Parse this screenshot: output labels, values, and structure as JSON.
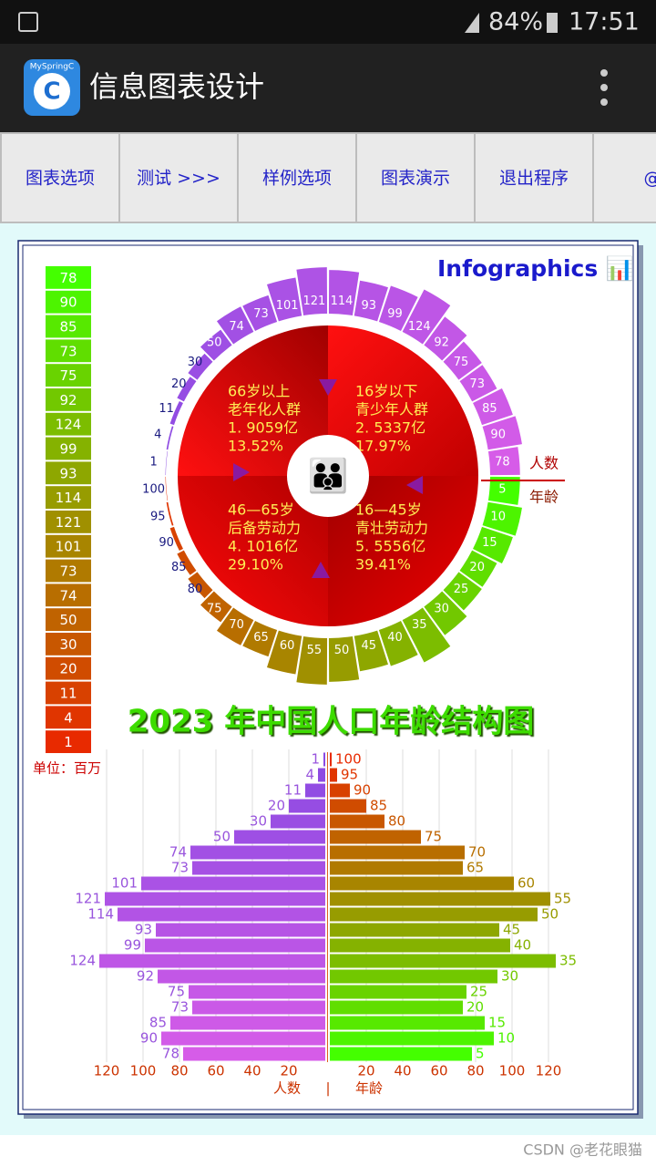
{
  "status_bar": {
    "battery": "84%",
    "time": "17:51"
  },
  "app_bar": {
    "icon_label": "MySpringC",
    "title": "信息图表设计"
  },
  "menu": [
    "图表选项",
    "测试  >>>",
    "样例选项",
    "图表演示",
    "退出程序",
    "@"
  ],
  "footer": "CSDN @老花眼猫",
  "chart_data": {
    "type": "pyramid",
    "title": "2023 年中国人口年龄结构图",
    "header": "Infographics 📊",
    "unit": "单位：百万",
    "axis_labels": [
      "人数",
      "年龄"
    ],
    "separator": "|",
    "categories": [
      5,
      10,
      15,
      20,
      25,
      30,
      35,
      40,
      45,
      50,
      55,
      60,
      65,
      70,
      75,
      80,
      85,
      90,
      95,
      100
    ],
    "values": [
      78,
      90,
      85,
      73,
      75,
      92,
      124,
      99,
      93,
      114,
      121,
      101,
      73,
      74,
      50,
      30,
      20,
      11,
      4,
      1
    ],
    "xlim": [
      0,
      120
    ],
    "xticks": [
      20,
      40,
      60,
      80,
      100,
      120
    ],
    "colors": {
      "count": [
        "#d65ce8",
        "#8a4ae2"
      ],
      "age": [
        "#44ff00",
        "#9c9600",
        "#e82a00"
      ]
    },
    "quadrants": [
      {
        "ages": "16岁以下",
        "group": "青少年人群",
        "population": "2. 5337亿",
        "share": "17.97%"
      },
      {
        "ages": "16—45岁",
        "group": "青壮劳动力",
        "population": "5. 5556亿",
        "share": "39.41%"
      },
      {
        "ages": "46—65岁",
        "group": "后备劳动力",
        "population": "4. 1016亿",
        "share": "29.10%"
      },
      {
        "ages": "66岁以上",
        "group": "老年化人群",
        "population": "1. 9059亿",
        "share": "13.52%"
      }
    ]
  }
}
